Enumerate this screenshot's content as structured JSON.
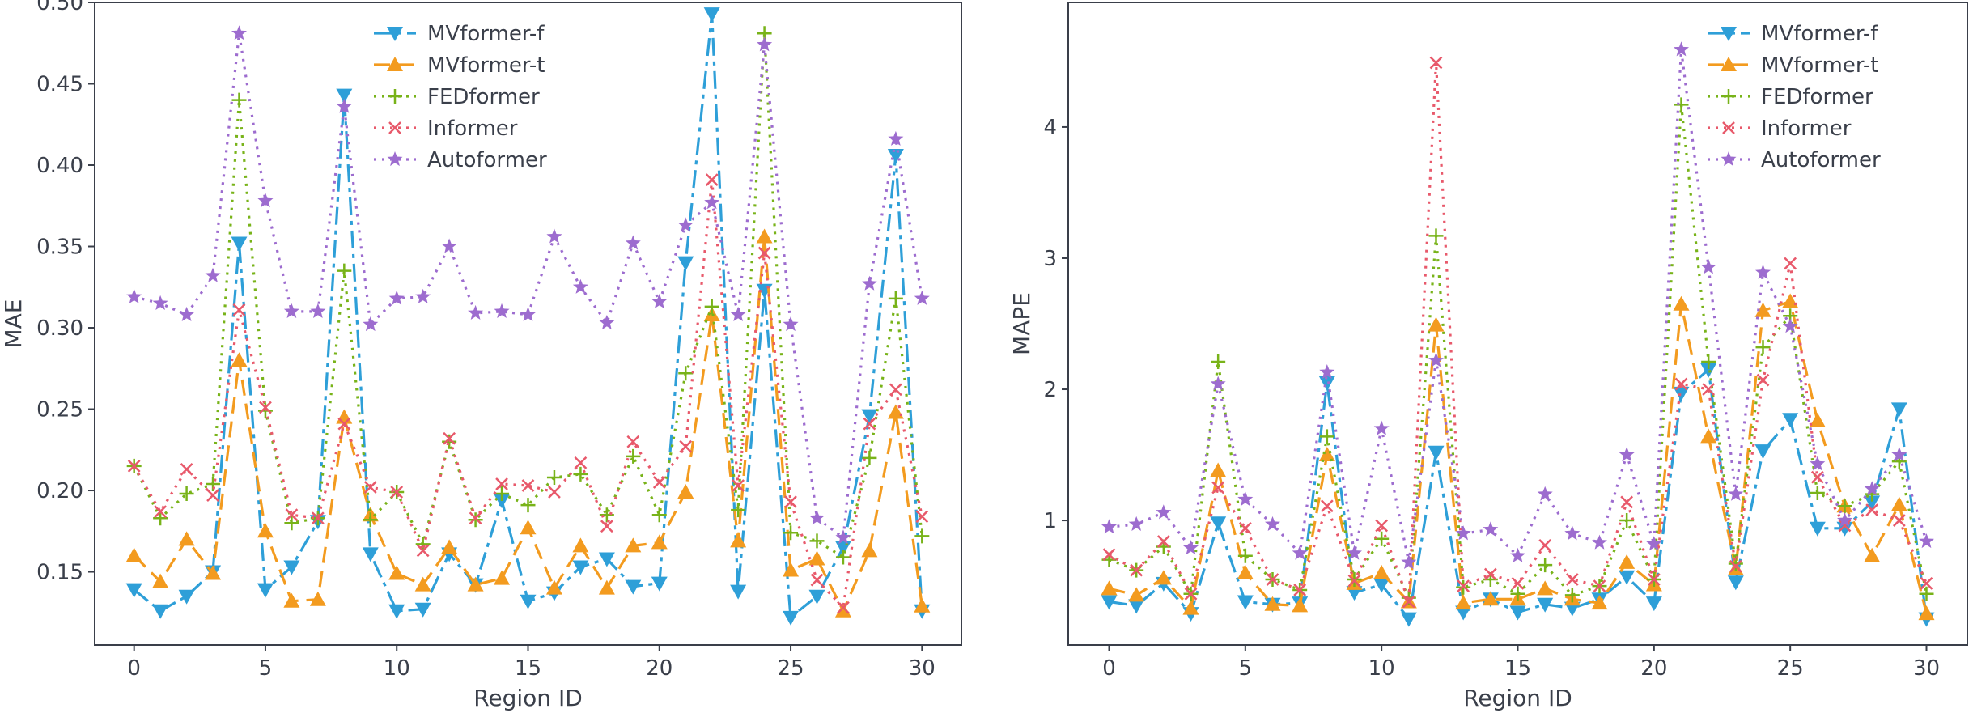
{
  "chart_data": [
    {
      "type": "line",
      "xlabel": "Region ID",
      "ylabel": "MAE",
      "xlim": [
        -1.5,
        31.5
      ],
      "ylim": [
        0.105,
        0.5
      ],
      "xticks": [
        0,
        5,
        10,
        15,
        20,
        25,
        30
      ],
      "yticks": [
        0.15,
        0.2,
        0.25,
        0.3,
        0.35,
        0.4,
        0.45,
        0.5
      ],
      "ytick_labels": [
        "0.15",
        "0.20",
        "0.25",
        "0.30",
        "0.35",
        "0.40",
        "0.45",
        "0.50"
      ],
      "legend_position": "top-center",
      "grid": false,
      "x": [
        0,
        1,
        2,
        3,
        4,
        5,
        6,
        7,
        8,
        9,
        10,
        11,
        12,
        13,
        14,
        15,
        16,
        17,
        18,
        19,
        20,
        21,
        22,
        23,
        24,
        25,
        26,
        27,
        28,
        29,
        30
      ],
      "series": [
        {
          "name": "MVformer-f",
          "color": "#2e9fd8",
          "dash": "22,7,5,7",
          "marker": "triangle-down",
          "values": [
            0.139,
            0.126,
            0.135,
            0.15,
            0.352,
            0.139,
            0.153,
            0.181,
            0.443,
            0.161,
            0.126,
            0.127,
            0.161,
            0.142,
            0.194,
            0.132,
            0.137,
            0.153,
            0.158,
            0.141,
            0.143,
            0.34,
            0.493,
            0.138,
            0.323,
            0.122,
            0.135,
            0.165,
            0.246,
            0.406,
            0.126
          ]
        },
        {
          "name": "MVformer-t",
          "color": "#f39b1f",
          "dash": "20,10",
          "marker": "triangle-up",
          "values": [
            0.16,
            0.144,
            0.17,
            0.149,
            0.28,
            0.175,
            0.132,
            0.133,
            0.245,
            0.185,
            0.149,
            0.142,
            0.165,
            0.142,
            0.146,
            0.177,
            0.14,
            0.166,
            0.14,
            0.166,
            0.168,
            0.199,
            0.308,
            0.169,
            0.356,
            0.151,
            0.158,
            0.126,
            0.163,
            0.248,
            0.129
          ]
        },
        {
          "name": "FEDformer",
          "color": "#78b319",
          "dash": "3,7",
          "marker": "plus",
          "values": [
            0.215,
            0.183,
            0.198,
            0.204,
            0.44,
            0.249,
            0.18,
            0.183,
            0.335,
            0.182,
            0.199,
            0.167,
            0.23,
            0.182,
            0.198,
            0.191,
            0.208,
            0.21,
            0.185,
            0.221,
            0.185,
            0.272,
            0.313,
            0.188,
            0.481,
            0.174,
            0.169,
            0.159,
            0.22,
            0.318,
            0.172
          ]
        },
        {
          "name": "Informer",
          "color": "#e8596b",
          "dash": "3,7",
          "marker": "x",
          "values": [
            0.215,
            0.187,
            0.213,
            0.197,
            0.311,
            0.251,
            0.185,
            0.183,
            0.241,
            0.202,
            0.199,
            0.163,
            0.232,
            0.183,
            0.204,
            0.203,
            0.199,
            0.217,
            0.178,
            0.23,
            0.205,
            0.227,
            0.391,
            0.203,
            0.346,
            0.193,
            0.145,
            0.128,
            0.241,
            0.262,
            0.184
          ]
        },
        {
          "name": "Autoformer",
          "color": "#9d6ccf",
          "dash": "3,7",
          "marker": "star",
          "values": [
            0.319,
            0.315,
            0.308,
            0.332,
            0.481,
            0.378,
            0.31,
            0.31,
            0.436,
            0.302,
            0.318,
            0.319,
            0.35,
            0.309,
            0.31,
            0.308,
            0.356,
            0.325,
            0.303,
            0.352,
            0.316,
            0.363,
            0.377,
            0.308,
            0.474,
            0.302,
            0.183,
            0.171,
            0.327,
            0.416,
            0.318
          ]
        }
      ]
    },
    {
      "type": "line",
      "xlabel": "Region ID",
      "ylabel": "MAPE",
      "xlim": [
        -1.5,
        31.5
      ],
      "ylim": [
        0.05,
        4.95
      ],
      "xticks": [
        0,
        5,
        10,
        15,
        20,
        25,
        30
      ],
      "yticks": [
        1,
        2,
        3,
        4
      ],
      "ytick_labels": [
        "1",
        "2",
        "3",
        "4"
      ],
      "legend_position": "top-right",
      "grid": false,
      "x": [
        0,
        1,
        2,
        3,
        4,
        5,
        6,
        7,
        8,
        9,
        10,
        11,
        12,
        13,
        14,
        15,
        16,
        17,
        18,
        19,
        20,
        21,
        22,
        23,
        24,
        25,
        26,
        27,
        28,
        29,
        30
      ],
      "series": [
        {
          "name": "MVformer-f",
          "color": "#2e9fd8",
          "dash": "22,7,5,7",
          "marker": "triangle-down",
          "values": [
            0.38,
            0.35,
            0.52,
            0.29,
            0.98,
            0.38,
            0.36,
            0.37,
            2.05,
            0.45,
            0.51,
            0.25,
            1.52,
            0.3,
            0.4,
            0.3,
            0.36,
            0.33,
            0.4,
            0.57,
            0.37,
            1.97,
            2.15,
            0.53,
            1.53,
            1.77,
            0.94,
            0.94,
            1.14,
            1.85,
            0.25
          ]
        },
        {
          "name": "MVformer-t",
          "color": "#f39b1f",
          "dash": "20,10",
          "marker": "triangle-up",
          "values": [
            0.48,
            0.43,
            0.56,
            0.33,
            1.38,
            0.6,
            0.36,
            0.35,
            1.5,
            0.52,
            0.6,
            0.38,
            2.49,
            0.37,
            0.4,
            0.4,
            0.48,
            0.4,
            0.37,
            0.68,
            0.51,
            2.65,
            1.64,
            0.63,
            2.6,
            2.67,
            1.76,
            1.11,
            0.73,
            1.12,
            0.29
          ]
        },
        {
          "name": "FEDformer",
          "color": "#78b319",
          "dash": "3,7",
          "marker": "plus",
          "values": [
            0.7,
            0.62,
            0.8,
            0.44,
            2.21,
            0.73,
            0.55,
            0.47,
            1.64,
            0.55,
            0.86,
            0.41,
            3.17,
            0.49,
            0.55,
            0.44,
            0.66,
            0.43,
            0.5,
            1.0,
            0.55,
            4.17,
            2.21,
            0.67,
            2.32,
            2.56,
            1.21,
            1.11,
            1.2,
            1.45,
            0.44
          ]
        },
        {
          "name": "Informer",
          "color": "#e8596b",
          "dash": "3,7",
          "marker": "x",
          "values": [
            0.74,
            0.62,
            0.84,
            0.44,
            1.25,
            0.94,
            0.55,
            0.47,
            1.11,
            0.54,
            0.96,
            0.38,
            4.49,
            0.5,
            0.59,
            0.52,
            0.81,
            0.55,
            0.5,
            1.14,
            0.55,
            2.04,
            2.0,
            0.65,
            2.07,
            2.96,
            1.33,
            0.96,
            1.08,
            1.0,
            0.52
          ]
        },
        {
          "name": "Autoformer",
          "color": "#9d6ccf",
          "dash": "3,7",
          "marker": "star",
          "values": [
            0.95,
            0.97,
            1.06,
            0.79,
            2.04,
            1.16,
            0.97,
            0.75,
            2.13,
            0.75,
            1.7,
            0.68,
            2.22,
            0.9,
            0.93,
            0.73,
            1.2,
            0.9,
            0.83,
            1.5,
            0.82,
            4.59,
            2.93,
            1.2,
            2.89,
            2.48,
            1.43,
            1.0,
            1.24,
            1.5,
            0.84
          ]
        }
      ]
    }
  ]
}
